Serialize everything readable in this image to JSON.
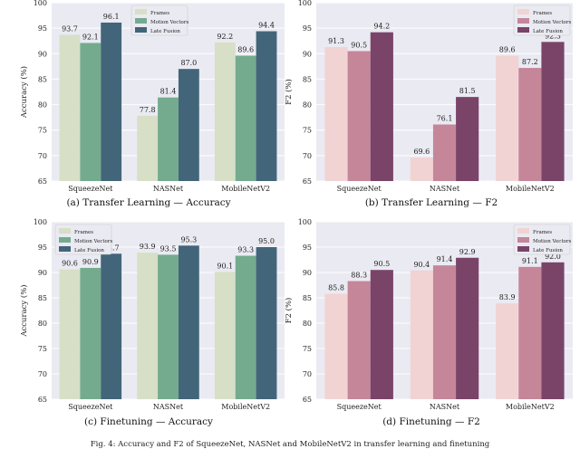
{
  "figure_caption": "Fig. 4: Accuracy and F2 of SqueezeNet, NASNet and MobileNetV2 in transfer learning and finetuning",
  "chart_data": [
    {
      "type": "bar",
      "caption": "(a)  Transfer Learning — Accuracy",
      "title": "",
      "xlabel": "",
      "ylabel": "Accuracy (%)",
      "ylim": [
        65,
        100
      ],
      "yticks": [
        65,
        70,
        75,
        80,
        85,
        90,
        95,
        100
      ],
      "grid": true,
      "legend_position": "top-center",
      "categories": [
        "SqueezeNet",
        "NASNet",
        "MobileNetV2"
      ],
      "series": [
        {
          "name": "Frames",
          "values": [
            93.7,
            77.8,
            92.2
          ],
          "labels": [
            "93.7",
            "77.8",
            "92.2"
          ],
          "color": "#d7dfc7"
        },
        {
          "name": "Motion Vectors",
          "values": [
            92.1,
            81.4,
            89.6
          ],
          "labels": [
            "92.1",
            "81.4",
            "89.6"
          ],
          "color": "#74ab8e"
        },
        {
          "name": "Late Fusion",
          "values": [
            96.1,
            87.0,
            94.4
          ],
          "labels": [
            "96.1",
            "87.0",
            "94.4"
          ],
          "color": "#43657a"
        }
      ]
    },
    {
      "type": "bar",
      "caption": "(b)  Transfer Learning — F2",
      "title": "",
      "xlabel": "",
      "ylabel": "F2 (%)",
      "ylim": [
        65,
        100
      ],
      "yticks": [
        65,
        70,
        75,
        80,
        85,
        90,
        95,
        100
      ],
      "grid": true,
      "legend_position": "top-right",
      "categories": [
        "SqueezeNet",
        "NASNet",
        "MobileNetV2"
      ],
      "series": [
        {
          "name": "Frames",
          "values": [
            91.3,
            69.6,
            89.6
          ],
          "labels": [
            "91.3",
            "69.6",
            "89.6"
          ],
          "color": "#f2d3d3"
        },
        {
          "name": "Motion Vectors",
          "values": [
            90.5,
            76.1,
            87.2
          ],
          "labels": [
            "90.5",
            "76.1",
            "87.2"
          ],
          "color": "#c5869a"
        },
        {
          "name": "Late Fusion",
          "values": [
            94.2,
            81.5,
            92.3
          ],
          "labels": [
            "94.2",
            "81.5",
            "92.3"
          ],
          "color": "#7a4468"
        }
      ]
    },
    {
      "type": "bar",
      "caption": "(c)  Finetuning — Accuracy",
      "title": "",
      "xlabel": "",
      "ylabel": "Accuracy (%)",
      "ylim": [
        65,
        100
      ],
      "yticks": [
        65,
        70,
        75,
        80,
        85,
        90,
        95,
        100
      ],
      "grid": true,
      "legend_position": "top-left",
      "categories": [
        "SqueezeNet",
        "NASNet",
        "MobileNetV2"
      ],
      "series": [
        {
          "name": "Frames",
          "values": [
            90.6,
            93.9,
            90.1
          ],
          "labels": [
            "90.6",
            "93.9",
            "90.1"
          ],
          "color": "#d7dfc7"
        },
        {
          "name": "Motion Vectors",
          "values": [
            90.9,
            93.5,
            93.3
          ],
          "labels": [
            "90.9",
            "93.5",
            "93.3"
          ],
          "color": "#74ab8e"
        },
        {
          "name": "Late Fusion",
          "values": [
            93.7,
            95.3,
            95.0
          ],
          "labels": [
            "93.7",
            "95.3",
            "95.0"
          ],
          "color": "#43657a"
        }
      ]
    },
    {
      "type": "bar",
      "caption": "(d)  Finetuning — F2",
      "title": "",
      "xlabel": "",
      "ylabel": "F2 (%)",
      "ylim": [
        65,
        100
      ],
      "yticks": [
        65,
        70,
        75,
        80,
        85,
        90,
        95,
        100
      ],
      "grid": true,
      "legend_position": "top-right",
      "categories": [
        "SqueezeNet",
        "NASNet",
        "MobileNetV2"
      ],
      "series": [
        {
          "name": "Frames",
          "values": [
            85.8,
            90.4,
            83.9
          ],
          "labels": [
            "85.8",
            "90.4",
            "83.9"
          ],
          "color": "#f2d3d3"
        },
        {
          "name": "Motion Vectors",
          "values": [
            88.3,
            91.4,
            91.1
          ],
          "labels": [
            "88.3",
            "91.4",
            "91.1"
          ],
          "color": "#c5869a"
        },
        {
          "name": "Late Fusion",
          "values": [
            90.5,
            92.9,
            92.0
          ],
          "labels": [
            "90.5",
            "92.9",
            "92.0"
          ],
          "color": "#7a4468"
        }
      ]
    }
  ]
}
